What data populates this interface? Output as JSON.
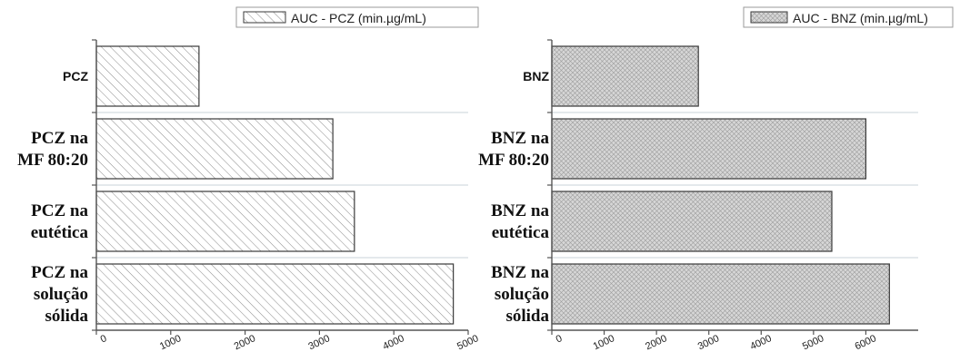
{
  "colors": {
    "axis": "#555555",
    "bar_stroke": "#3a3a3a",
    "gridline": "#c9d3da",
    "pcz_hatch": "#8a8a8a",
    "bnz_fill": "#d6d6d6",
    "bnz_hatch": "#9a9a9a"
  },
  "chart_data": [
    {
      "type": "bar",
      "orientation": "horizontal",
      "legend": "AUC - PCZ (min.µg/mL)",
      "legend_position": "top-right",
      "categories": [
        [
          "PCZ"
        ],
        [
          "PCZ na",
          "MF 80:20"
        ],
        [
          "PCZ na",
          "eutética"
        ],
        [
          "PCZ na",
          "solução",
          "sólida"
        ]
      ],
      "values": [
        1380,
        3180,
        3470,
        4800
      ],
      "xlim": [
        0,
        5000
      ],
      "xticks": [
        0,
        1000,
        2000,
        3000,
        4000,
        5000
      ],
      "fill_pattern": "diagonal-hatch",
      "grid": false
    },
    {
      "type": "bar",
      "orientation": "horizontal",
      "legend": "AUC - BNZ (min.µg/mL)",
      "legend_position": "top-right",
      "categories": [
        [
          "BNZ"
        ],
        [
          "BNZ na",
          "MF 80:20"
        ],
        [
          "BNZ na",
          "eutética"
        ],
        [
          "BNZ na",
          "solução",
          "sólida"
        ]
      ],
      "values": [
        2800,
        6000,
        5350,
        6450
      ],
      "xlim": [
        0,
        7000
      ],
      "xticks": [
        0,
        1000,
        2000,
        3000,
        4000,
        5000,
        6000
      ],
      "fill_pattern": "cross-hatch",
      "grid": false
    }
  ]
}
